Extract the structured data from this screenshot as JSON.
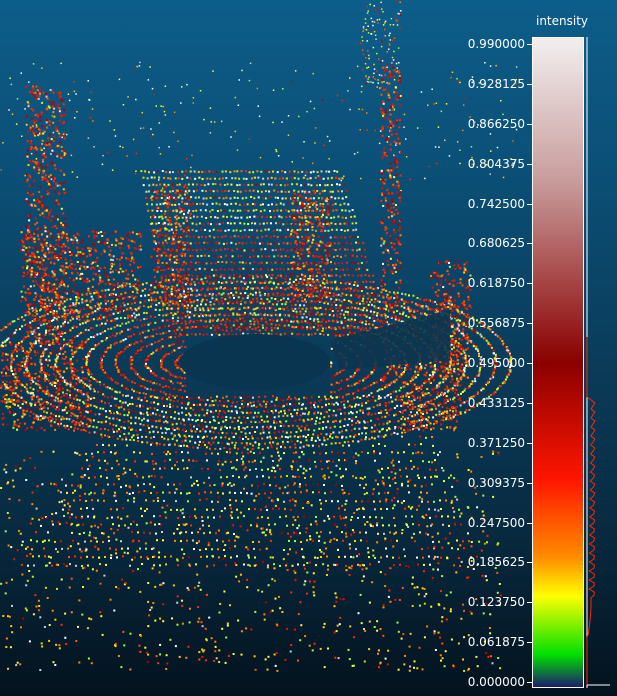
{
  "scalar_field": {
    "title": "intensity",
    "ticks": [
      "0.990000",
      "0.928125",
      "0.866250",
      "0.804375",
      "0.742500",
      "0.680625",
      "0.618750",
      "0.556875",
      "0.495000",
      "0.433125",
      "0.371250",
      "0.309375",
      "0.247500",
      "0.185625",
      "0.123750",
      "0.061875",
      "0.000000"
    ],
    "colors": {
      "top": "#f2efef",
      "upper": "#c99c9c",
      "mid": "#8a0000",
      "red": "#ff1500",
      "orange": "#ff8c00",
      "yellow": "#ffff00",
      "green": "#00e000",
      "bottom": "#1c1c6e"
    }
  }
}
